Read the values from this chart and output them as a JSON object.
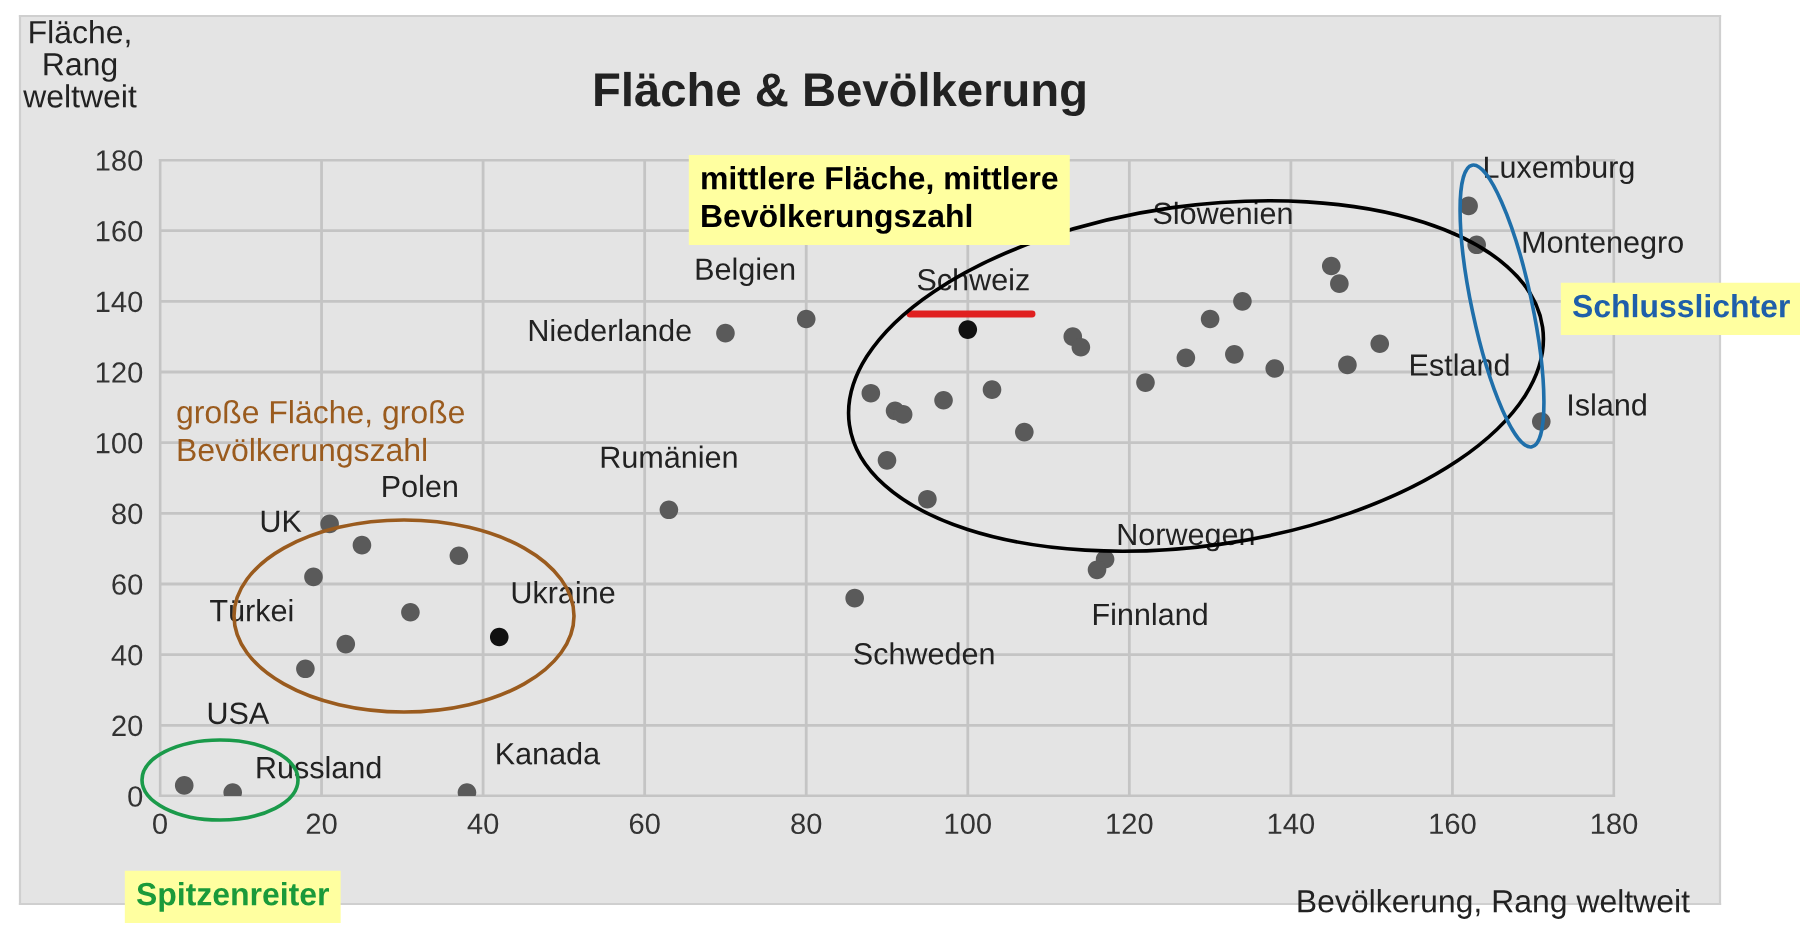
{
  "chart_data": {
    "type": "scatter",
    "title": "Fläche & Bevölkerung",
    "xlabel": "Bevölkerung, Rang weltweit",
    "ylabel": "Fläche,\nRang\nweltweit",
    "xlim": [
      0,
      180
    ],
    "ylim": [
      0,
      180
    ],
    "xticks": [
      0,
      20,
      40,
      60,
      80,
      100,
      120,
      140,
      160,
      180
    ],
    "yticks": [
      0,
      20,
      40,
      60,
      80,
      100,
      120,
      140,
      160,
      180
    ],
    "grid": true,
    "marker": "circle",
    "series": [
      {
        "x": [
          3,
          9,
          38,
          18,
          23,
          31,
          19,
          21,
          25,
          37,
          42,
          63,
          70,
          80,
          100,
          88,
          91,
          92,
          97,
          103,
          107,
          90,
          95,
          86,
          113,
          114,
          122,
          127,
          117,
          116,
          130,
          134,
          133,
          138,
          145,
          146,
          147,
          151,
          162,
          163,
          171
        ],
        "values": [
          3,
          1,
          1,
          36,
          43,
          52,
          62,
          77,
          71,
          68,
          45,
          81,
          131,
          135,
          132,
          114,
          109,
          108,
          112,
          115,
          103,
          95,
          84,
          56,
          130,
          127,
          117,
          124,
          67,
          64,
          135,
          140,
          125,
          121,
          150,
          145,
          122,
          128,
          167,
          156,
          106
        ],
        "colors": [
          "#5a5a5a",
          "#5a5a5a",
          "#5a5a5a",
          "#5a5a5a",
          "#5a5a5a",
          "#5a5a5a",
          "#5a5a5a",
          "#5a5a5a",
          "#5a5a5a",
          "#5a5a5a",
          "#111111",
          "#5a5a5a",
          "#5a5a5a",
          "#5a5a5a",
          "#111111",
          "#5a5a5a",
          "#5a5a5a",
          "#5a5a5a",
          "#5a5a5a",
          "#5a5a5a",
          "#5a5a5a",
          "#5a5a5a",
          "#5a5a5a",
          "#5a5a5a",
          "#5a5a5a",
          "#5a5a5a",
          "#5a5a5a",
          "#5a5a5a",
          "#5a5a5a",
          "#5a5a5a",
          "#5a5a5a",
          "#5a5a5a",
          "#5a5a5a",
          "#5a5a5a",
          "#5a5a5a",
          "#5a5a5a",
          "#5a5a5a",
          "#5a5a5a",
          "#5a5a5a",
          "#5a5a5a",
          "#5a5a5a"
        ]
      }
    ],
    "annotations": [
      {
        "text": "USA",
        "x": 3,
        "y": 3
      },
      {
        "text": "Russland",
        "x": 9,
        "y": 1
      },
      {
        "text": "Kanada",
        "x": 38,
        "y": 1
      },
      {
        "text": "Türkei",
        "x": 18,
        "y": 36
      },
      {
        "text": "UK",
        "x": 21,
        "y": 77
      },
      {
        "text": "Polen",
        "x": 37,
        "y": 68
      },
      {
        "text": "Ukraine",
        "x": 42,
        "y": 45
      },
      {
        "text": "Rumänien",
        "x": 63,
        "y": 81
      },
      {
        "text": "Niederlande",
        "x": 70,
        "y": 131
      },
      {
        "text": "Belgien",
        "x": 80,
        "y": 135
      },
      {
        "text": "Schweiz",
        "x": 100,
        "y": 132
      },
      {
        "text": "Schweden",
        "x": 86,
        "y": 56
      },
      {
        "text": "Norwegen",
        "x": 117,
        "y": 67
      },
      {
        "text": "Finnland",
        "x": 116,
        "y": 64
      },
      {
        "text": "Slowenien",
        "x": 145,
        "y": 150
      },
      {
        "text": "Estland",
        "x": 147,
        "y": 122
      },
      {
        "text": "Luxemburg",
        "x": 162,
        "y": 167
      },
      {
        "text": "Montenegro",
        "x": 163,
        "y": 156
      },
      {
        "text": "Island",
        "x": 171,
        "y": 106
      },
      "große Fläche, große\nBevölkerungszahl",
      "mittlere Fläche, mittlere\nBevölkerungszahl",
      "Schlusslichter",
      "Spitzenreiter"
    ]
  }
}
